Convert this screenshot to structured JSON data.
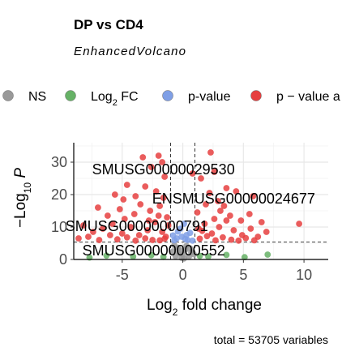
{
  "chart_data": {
    "type": "scatter",
    "title": "DP vs CD4",
    "subtitle": "EnhancedVolcano",
    "caption": "total = 53705 variables",
    "xlabel": {
      "base": "Log",
      "sub": "2",
      "rest": " fold change"
    },
    "ylabel": {
      "pre": "−Log",
      "sub": "10",
      "post": " P"
    },
    "xlim": [
      -9,
      12
    ],
    "ylim": [
      0,
      36
    ],
    "xticks": [
      -5,
      0,
      5,
      10
    ],
    "yticks": [
      0,
      10,
      20,
      30
    ],
    "grid": true,
    "legend_position": "top",
    "fc_cutoff": 1,
    "p_cutoff_line_y": 5.4,
    "legend": [
      {
        "key": "NS",
        "label": "NS",
        "color": "#999999"
      },
      {
        "key": "log2fc",
        "label_base": "Log",
        "label_sub": "2",
        "label_rest": " FC",
        "color": "#66b266"
      },
      {
        "key": "pvalue",
        "label": "p-value",
        "color": "#7f9fe6"
      },
      {
        "key": "both",
        "label": "p − value a",
        "color": "#e63f3f"
      }
    ],
    "labeled_points": [
      {
        "text": "SMUSG00000029530",
        "x": -1.6,
        "y": 27.5
      },
      {
        "text": "ENSMUSG00000024677",
        "x": 4.2,
        "y": 18.5
      },
      {
        "text": "SMUSG00000000791",
        "x": -3.8,
        "y": 10.0
      },
      {
        "text": "SMUSG00000000552",
        "x": -2.4,
        "y": 2.5
      }
    ],
    "points": {
      "both": [
        [
          -3.3,
          31.5
        ],
        [
          -2.0,
          32.0
        ],
        [
          2.3,
          33.0
        ],
        [
          -2.6,
          28.5
        ],
        [
          -1.7,
          30.0
        ],
        [
          -4.6,
          23.0
        ],
        [
          -5.6,
          20.0
        ],
        [
          -4.9,
          18.5
        ],
        [
          -3.1,
          22.5
        ],
        [
          -2.2,
          21.0
        ],
        [
          -1.5,
          25.5
        ],
        [
          2.6,
          27.0
        ],
        [
          1.5,
          25.0
        ],
        [
          0.8,
          26.5
        ],
        [
          3.6,
          22.0
        ],
        [
          4.4,
          21.0
        ],
        [
          5.8,
          19.5
        ],
        [
          2.9,
          18.0
        ],
        [
          -7.0,
          16.0
        ],
        [
          -6.2,
          13.5
        ],
        [
          -5.2,
          15.5
        ],
        [
          -4.0,
          14.0
        ],
        [
          -3.5,
          17.0
        ],
        [
          -2.7,
          15.0
        ],
        [
          -1.9,
          16.5
        ],
        [
          -1.3,
          13.0
        ],
        [
          1.2,
          14.5
        ],
        [
          1.9,
          17.0
        ],
        [
          3.1,
          15.0
        ],
        [
          3.9,
          13.5
        ],
        [
          4.8,
          12.0
        ],
        [
          5.5,
          14.0
        ],
        [
          6.5,
          11.5
        ],
        [
          9.6,
          11.0
        ],
        [
          -8.2,
          10.5
        ],
        [
          -7.4,
          8.5
        ],
        [
          -6.6,
          9.5
        ],
        [
          -5.8,
          11.0
        ],
        [
          -5.0,
          8.0
        ],
        [
          -4.3,
          10.0
        ],
        [
          -3.6,
          7.5
        ],
        [
          -2.9,
          9.0
        ],
        [
          -2.3,
          11.5
        ],
        [
          -1.7,
          8.5
        ],
        [
          -1.2,
          10.5
        ],
        [
          1.3,
          9.5
        ],
        [
          1.8,
          11.0
        ],
        [
          2.4,
          8.0
        ],
        [
          3.0,
          10.0
        ],
        [
          3.6,
          12.0
        ],
        [
          4.2,
          9.0
        ],
        [
          4.9,
          7.5
        ],
        [
          5.6,
          9.5
        ],
        [
          6.2,
          7.0
        ],
        [
          6.9,
          8.5
        ],
        [
          -8.6,
          6.5
        ],
        [
          -7.8,
          7.0
        ],
        [
          -6.9,
          6.0
        ],
        [
          -6.0,
          7.5
        ],
        [
          -5.4,
          6.2
        ],
        [
          -4.6,
          6.8
        ],
        [
          -3.9,
          5.8
        ],
        [
          -3.1,
          6.5
        ],
        [
          -2.5,
          6.0
        ],
        [
          -1.9,
          5.9
        ],
        [
          -1.4,
          7.0
        ],
        [
          1.4,
          6.4
        ],
        [
          2.0,
          7.2
        ],
        [
          2.7,
          5.9
        ],
        [
          3.3,
          6.8
        ],
        [
          4.0,
          6.1
        ],
        [
          4.6,
          5.8
        ],
        [
          5.2,
          6.6
        ],
        [
          5.9,
          5.9
        ],
        [
          -2.0,
          13.5
        ],
        [
          -1.6,
          19.0
        ],
        [
          2.2,
          20.5
        ],
        [
          -3.9,
          19.5
        ],
        [
          2.6,
          12.5
        ],
        [
          -2.8,
          12.0
        ],
        [
          1.6,
          8.8
        ],
        [
          -1.5,
          6.4
        ],
        [
          3.4,
          16.5
        ],
        [
          -4.8,
          12.5
        ]
      ],
      "pvalue": [
        [
          -0.2,
          9.5
        ],
        [
          0.3,
          7.5
        ],
        [
          -0.5,
          6.5
        ],
        [
          0.6,
          8.2
        ],
        [
          0.1,
          11.0
        ],
        [
          -0.7,
          5.9
        ],
        [
          0.4,
          6.0
        ],
        [
          -0.1,
          7.0
        ],
        [
          0.8,
          5.8
        ],
        [
          -0.4,
          8.6
        ],
        [
          0.2,
          6.3
        ],
        [
          -0.8,
          7.4
        ]
      ],
      "log2fc": [
        [
          7.0,
          1.5
        ],
        [
          -6.3,
          1.2
        ],
        [
          -4.1,
          0.9
        ],
        [
          -2.6,
          1.3
        ],
        [
          -1.6,
          0.8
        ],
        [
          1.4,
          1.1
        ],
        [
          2.1,
          0.9
        ],
        [
          3.6,
          1.4
        ],
        [
          5.1,
          0.7
        ],
        [
          -7.7,
          0.6
        ]
      ],
      "NS": [
        [
          -0.6,
          1.0
        ],
        [
          -0.3,
          2.0
        ],
        [
          0.0,
          1.5
        ],
        [
          0.2,
          3.0
        ],
        [
          0.5,
          0.8
        ],
        [
          -0.8,
          2.5
        ],
        [
          0.7,
          2.2
        ],
        [
          -0.1,
          0.5
        ],
        [
          0.3,
          4.2
        ],
        [
          -0.4,
          3.6
        ],
        [
          0.1,
          0.3
        ],
        [
          -0.2,
          2.8
        ],
        [
          0.6,
          3.4
        ],
        [
          -0.7,
          4.4
        ],
        [
          0.9,
          1.6
        ]
      ]
    }
  }
}
